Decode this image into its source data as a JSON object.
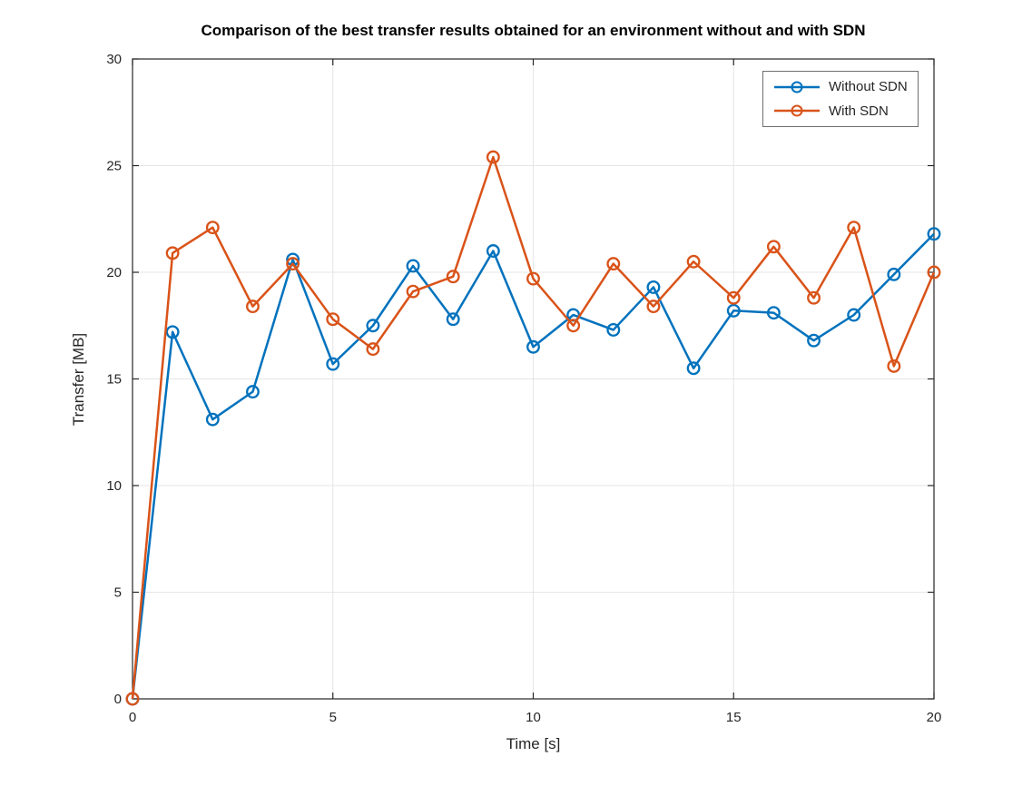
{
  "chart_data": {
    "type": "line",
    "title": "Comparison of the best transfer results obtained for an environment without and with SDN",
    "xlabel": "Time [s]",
    "ylabel": "Transfer [MB]",
    "xlim": [
      0,
      20
    ],
    "ylim": [
      0,
      30
    ],
    "xticks": [
      0,
      5,
      10,
      15,
      20
    ],
    "yticks": [
      0,
      5,
      10,
      15,
      20,
      25,
      30
    ],
    "grid": true,
    "legend_position": "top-right",
    "x": [
      0,
      1,
      2,
      3,
      4,
      5,
      6,
      7,
      8,
      9,
      10,
      11,
      12,
      13,
      14,
      15,
      16,
      17,
      18,
      19,
      20
    ],
    "series": [
      {
        "name": "Without SDN",
        "color": "#0072BD",
        "marker": "circle",
        "values": [
          0,
          17.2,
          13.1,
          14.4,
          20.6,
          15.7,
          17.5,
          20.3,
          17.8,
          21.0,
          16.5,
          18.0,
          17.3,
          19.3,
          15.5,
          18.2,
          18.1,
          16.8,
          18.0,
          19.9,
          21.8
        ]
      },
      {
        "name": "With SDN",
        "color": "#D95319",
        "marker": "circle",
        "values": [
          0,
          20.9,
          22.1,
          18.4,
          20.4,
          17.8,
          16.4,
          19.1,
          19.8,
          25.4,
          19.7,
          17.5,
          20.4,
          18.4,
          20.5,
          18.8,
          21.2,
          18.8,
          22.1,
          15.6,
          20.0
        ]
      }
    ],
    "grid_color": "#e6e6e6",
    "axis_color": "#262626",
    "tick_label_color": "#262626"
  }
}
